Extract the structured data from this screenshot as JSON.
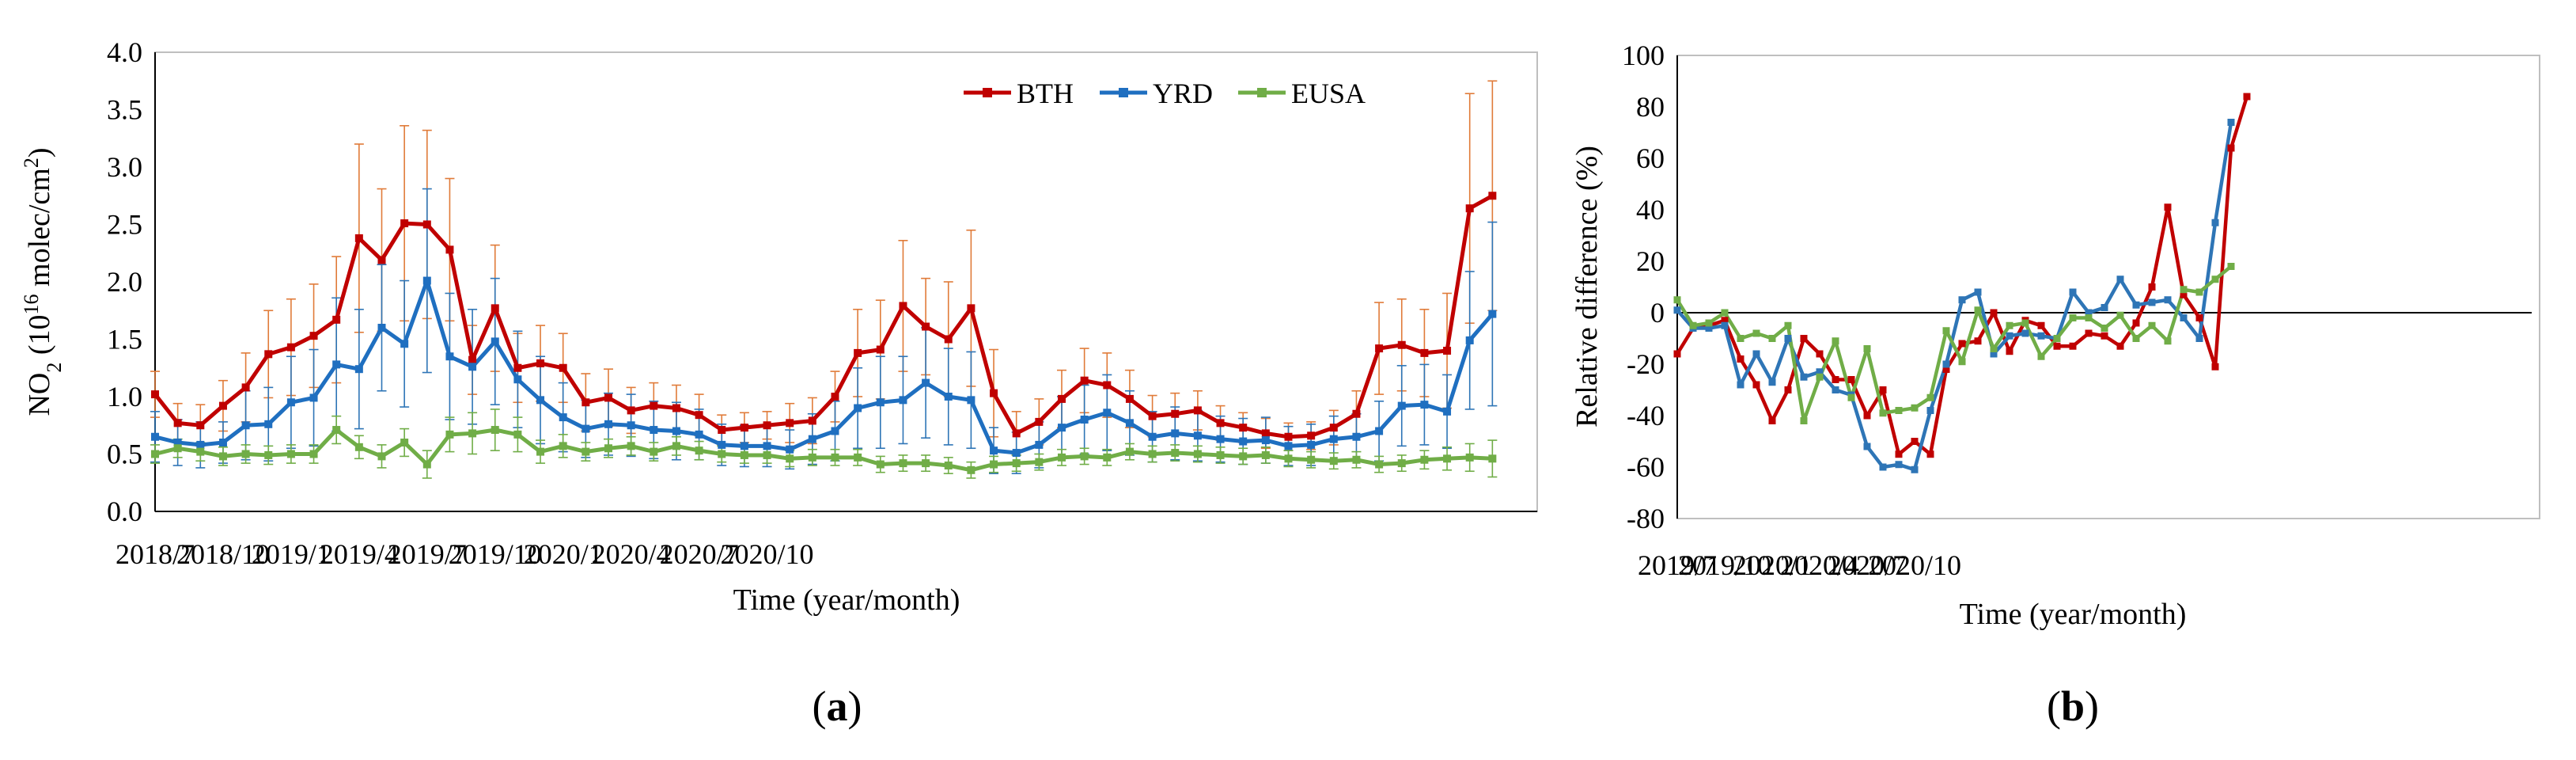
{
  "chart_data": [
    {
      "type": "line",
      "panel_label": {
        "open": "(",
        "letter": "a",
        "close": ")"
      },
      "xlabel": "Time (year/month)",
      "ylabel": {
        "prefix": "NO",
        "sub": "2",
        "mid": " (10",
        "sup": "16",
        "unit": " molec/cm",
        "sup2": "2",
        "end": ")"
      },
      "ylim": [
        0,
        4.0
      ],
      "yticks": [
        "0.0",
        "0.5",
        "1.0",
        "1.5",
        "2.0",
        "2.5",
        "3.0",
        "3.5",
        "4.0"
      ],
      "xtick_labels": [
        {
          "i": 0,
          "label": "2018/7"
        },
        {
          "i": 3,
          "label": "2018/10"
        },
        {
          "i": 6,
          "label": "2019/1"
        },
        {
          "i": 9,
          "label": "2019/4"
        },
        {
          "i": 12,
          "label": "2019/7"
        },
        {
          "i": 15,
          "label": "2019/10"
        },
        {
          "i": 18,
          "label": "2020/1"
        },
        {
          "i": 21,
          "label": "2020/4"
        },
        {
          "i": 24,
          "label": "2020/7"
        },
        {
          "i": 27,
          "label": "2020/10"
        }
      ],
      "n_points": 61,
      "legend_position": "top-right",
      "series": [
        {
          "name": "BTH",
          "color": "#c00000",
          "errcolor": "#e07b39",
          "values": [
            1.02,
            0.77,
            0.75,
            0.92,
            1.08,
            1.37,
            1.43,
            1.53,
            1.67,
            2.38,
            2.19,
            2.51,
            2.5,
            2.28,
            1.32,
            1.77,
            1.25,
            1.29,
            1.25,
            0.95,
            0.99,
            0.88,
            0.92,
            0.9,
            0.84,
            0.71,
            0.73,
            0.75,
            0.77,
            0.79,
            1.0,
            1.38,
            1.41,
            1.79,
            1.61,
            1.5,
            1.77,
            1.03,
            0.68,
            0.78,
            0.98,
            1.14,
            1.1,
            0.98,
            0.83,
            0.85,
            0.88,
            0.77,
            0.73,
            0.68,
            0.65,
            0.66,
            0.73,
            0.85,
            1.42,
            1.45,
            1.38,
            1.4,
            2.64,
            2.75
          ],
          "errors": [
            0.2,
            0.17,
            0.18,
            0.22,
            0.3,
            0.38,
            0.42,
            0.45,
            0.55,
            0.82,
            0.62,
            0.85,
            0.82,
            0.62,
            0.3,
            0.55,
            0.3,
            0.33,
            0.3,
            0.25,
            0.25,
            0.2,
            0.2,
            0.2,
            0.18,
            0.13,
            0.13,
            0.12,
            0.17,
            0.2,
            0.22,
            0.38,
            0.43,
            0.57,
            0.42,
            0.5,
            0.68,
            0.38,
            0.19,
            0.2,
            0.25,
            0.28,
            0.28,
            0.25,
            0.18,
            0.18,
            0.17,
            0.15,
            0.13,
            0.13,
            0.12,
            0.12,
            0.15,
            0.2,
            0.4,
            0.4,
            0.38,
            0.5,
            1.0,
            1.0
          ]
        },
        {
          "name": "YRD",
          "color": "#1f6fc0",
          "errcolor": "#2e75b6",
          "values": [
            0.65,
            0.6,
            0.58,
            0.6,
            0.75,
            0.76,
            0.95,
            0.99,
            1.28,
            1.24,
            1.6,
            1.46,
            2.01,
            1.35,
            1.26,
            1.48,
            1.15,
            0.97,
            0.82,
            0.72,
            0.76,
            0.75,
            0.71,
            0.7,
            0.67,
            0.58,
            0.57,
            0.57,
            0.54,
            0.63,
            0.7,
            0.9,
            0.95,
            0.97,
            1.12,
            1.0,
            0.97,
            0.53,
            0.51,
            0.58,
            0.73,
            0.8,
            0.86,
            0.77,
            0.65,
            0.68,
            0.66,
            0.63,
            0.61,
            0.62,
            0.57,
            0.58,
            0.63,
            0.65,
            0.7,
            0.92,
            0.93,
            0.87,
            1.49,
            1.72
          ],
          "errors": [
            0.22,
            0.2,
            0.2,
            0.18,
            0.3,
            0.32,
            0.4,
            0.42,
            0.58,
            0.52,
            0.55,
            0.55,
            0.8,
            0.55,
            0.5,
            0.55,
            0.42,
            0.38,
            0.3,
            0.25,
            0.27,
            0.27,
            0.25,
            0.25,
            0.22,
            0.18,
            0.18,
            0.18,
            0.17,
            0.22,
            0.26,
            0.35,
            0.4,
            0.38,
            0.48,
            0.42,
            0.42,
            0.2,
            0.18,
            0.2,
            0.27,
            0.3,
            0.33,
            0.28,
            0.22,
            0.23,
            0.22,
            0.2,
            0.2,
            0.2,
            0.17,
            0.18,
            0.2,
            0.2,
            0.26,
            0.35,
            0.35,
            0.32,
            0.6,
            0.8
          ]
        },
        {
          "name": "EUSA",
          "color": "#70ad47",
          "errcolor": "#70ad47",
          "values": [
            0.5,
            0.55,
            0.52,
            0.48,
            0.5,
            0.49,
            0.5,
            0.5,
            0.71,
            0.56,
            0.48,
            0.6,
            0.41,
            0.67,
            0.68,
            0.71,
            0.67,
            0.52,
            0.57,
            0.52,
            0.55,
            0.57,
            0.52,
            0.57,
            0.53,
            0.5,
            0.49,
            0.49,
            0.46,
            0.47,
            0.47,
            0.47,
            0.41,
            0.42,
            0.42,
            0.4,
            0.36,
            0.41,
            0.42,
            0.43,
            0.47,
            0.48,
            0.47,
            0.52,
            0.5,
            0.51,
            0.5,
            0.49,
            0.48,
            0.49,
            0.46,
            0.45,
            0.44,
            0.45,
            0.41,
            0.42,
            0.45,
            0.46,
            0.47,
            0.46
          ],
          "errors": [
            0.08,
            0.08,
            0.08,
            0.08,
            0.08,
            0.08,
            0.08,
            0.08,
            0.12,
            0.1,
            0.1,
            0.12,
            0.12,
            0.15,
            0.18,
            0.18,
            0.15,
            0.1,
            0.1,
            0.08,
            0.08,
            0.08,
            0.08,
            0.08,
            0.08,
            0.07,
            0.07,
            0.07,
            0.07,
            0.07,
            0.07,
            0.07,
            0.07,
            0.07,
            0.07,
            0.07,
            0.07,
            0.07,
            0.07,
            0.07,
            0.07,
            0.07,
            0.07,
            0.07,
            0.07,
            0.07,
            0.07,
            0.07,
            0.07,
            0.07,
            0.07,
            0.07,
            0.07,
            0.07,
            0.07,
            0.07,
            0.08,
            0.1,
            0.12,
            0.16
          ]
        }
      ]
    },
    {
      "type": "line",
      "panel_label": {
        "open": "(",
        "letter": "b",
        "close": ")"
      },
      "xlabel": "Time (year/month)",
      "ylabel": "Relative difference (%)",
      "ylim": [
        -80,
        100
      ],
      "yticks": [
        "-80",
        "-60",
        "-40",
        "-20",
        "0",
        "20",
        "40",
        "60",
        "80",
        "100"
      ],
      "xtick_labels": [
        {
          "i": 0,
          "label": "2019/7"
        },
        {
          "i": 3,
          "label": "2019/10"
        },
        {
          "i": 6,
          "label": "2020/1"
        },
        {
          "i": 9,
          "label": "2020/4"
        },
        {
          "i": 12,
          "label": "2020/7"
        },
        {
          "i": 15,
          "label": "2020/10"
        }
      ],
      "n_points": 55,
      "series": [
        {
          "name": "BTH",
          "color": "#c00000",
          "values": [
            -16,
            -6,
            -5,
            -3,
            -18,
            -28,
            -42,
            -30,
            -10,
            -16,
            -26,
            -26,
            -40,
            -30,
            -55,
            -50,
            -55,
            -22,
            -12,
            -11,
            0,
            -15,
            -3,
            -5,
            -13,
            -13,
            -8,
            -9,
            -13,
            -4,
            10,
            41,
            7,
            -2,
            -21,
            64,
            84
          ]
        },
        {
          "name": "YRD",
          "color": "#2e75b6",
          "values": [
            1,
            -6,
            -6,
            -5,
            -28,
            -16,
            -27,
            -10,
            -25,
            -23,
            -30,
            -32,
            -52,
            -60,
            -59,
            -61,
            -38,
            -20,
            5,
            8,
            -16,
            -9,
            -8,
            -9,
            -10,
            8,
            0,
            2,
            13,
            3,
            4,
            5,
            -2,
            -10,
            35,
            74
          ]
        },
        {
          "name": "EUSA",
          "color": "#70ad47",
          "values": [
            5,
            -5,
            -4,
            0,
            -10,
            -8,
            -10,
            -5,
            -42,
            -25,
            -11,
            -33,
            -14,
            -39,
            -38,
            -37,
            -33,
            -7,
            -19,
            1,
            -14,
            -5,
            -4,
            -17,
            -10,
            -2,
            -2,
            -6,
            -1,
            -10,
            -5,
            -11,
            9,
            8,
            13,
            18
          ]
        }
      ]
    }
  ]
}
